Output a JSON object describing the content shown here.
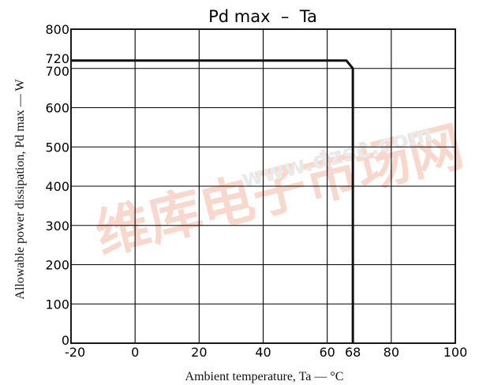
{
  "chart_data": {
    "type": "line",
    "title": "Pd max  –  Ta",
    "xlabel": "Ambient temperature, Ta — °C",
    "ylabel": "Allowable power dissipation, Pd max — W",
    "xlim": [
      -20,
      100
    ],
    "ylim": [
      0,
      800
    ],
    "x_ticks": [
      -20,
      0,
      20,
      40,
      60,
      68,
      80,
      100
    ],
    "x_tick_labels": [
      "-20",
      "0",
      "20",
      "40",
      "60",
      "68",
      "80",
      "100"
    ],
    "y_ticks": [
      0,
      100,
      200,
      300,
      400,
      500,
      600,
      700,
      720,
      800
    ],
    "y_tick_labels": [
      "0",
      "100",
      "200",
      "300",
      "400",
      "500",
      "600",
      "700",
      "720",
      "800"
    ],
    "x_gridlines": [
      0,
      20,
      40,
      60,
      80
    ],
    "y_gridlines": [
      100,
      200,
      300,
      400,
      500,
      600,
      700,
      800
    ],
    "grid": true,
    "legend": "none",
    "series": [
      {
        "x": [
          -20,
          66,
          68,
          68
        ],
        "y": [
          720,
          720,
          700,
          0
        ]
      }
    ],
    "colors": {
      "line": "#111111",
      "grid": "#000000",
      "watermark": "#f6c9b8"
    }
  },
  "watermark": {
    "cjk": "维库电子市场网",
    "url": "www.dzsc.com"
  }
}
